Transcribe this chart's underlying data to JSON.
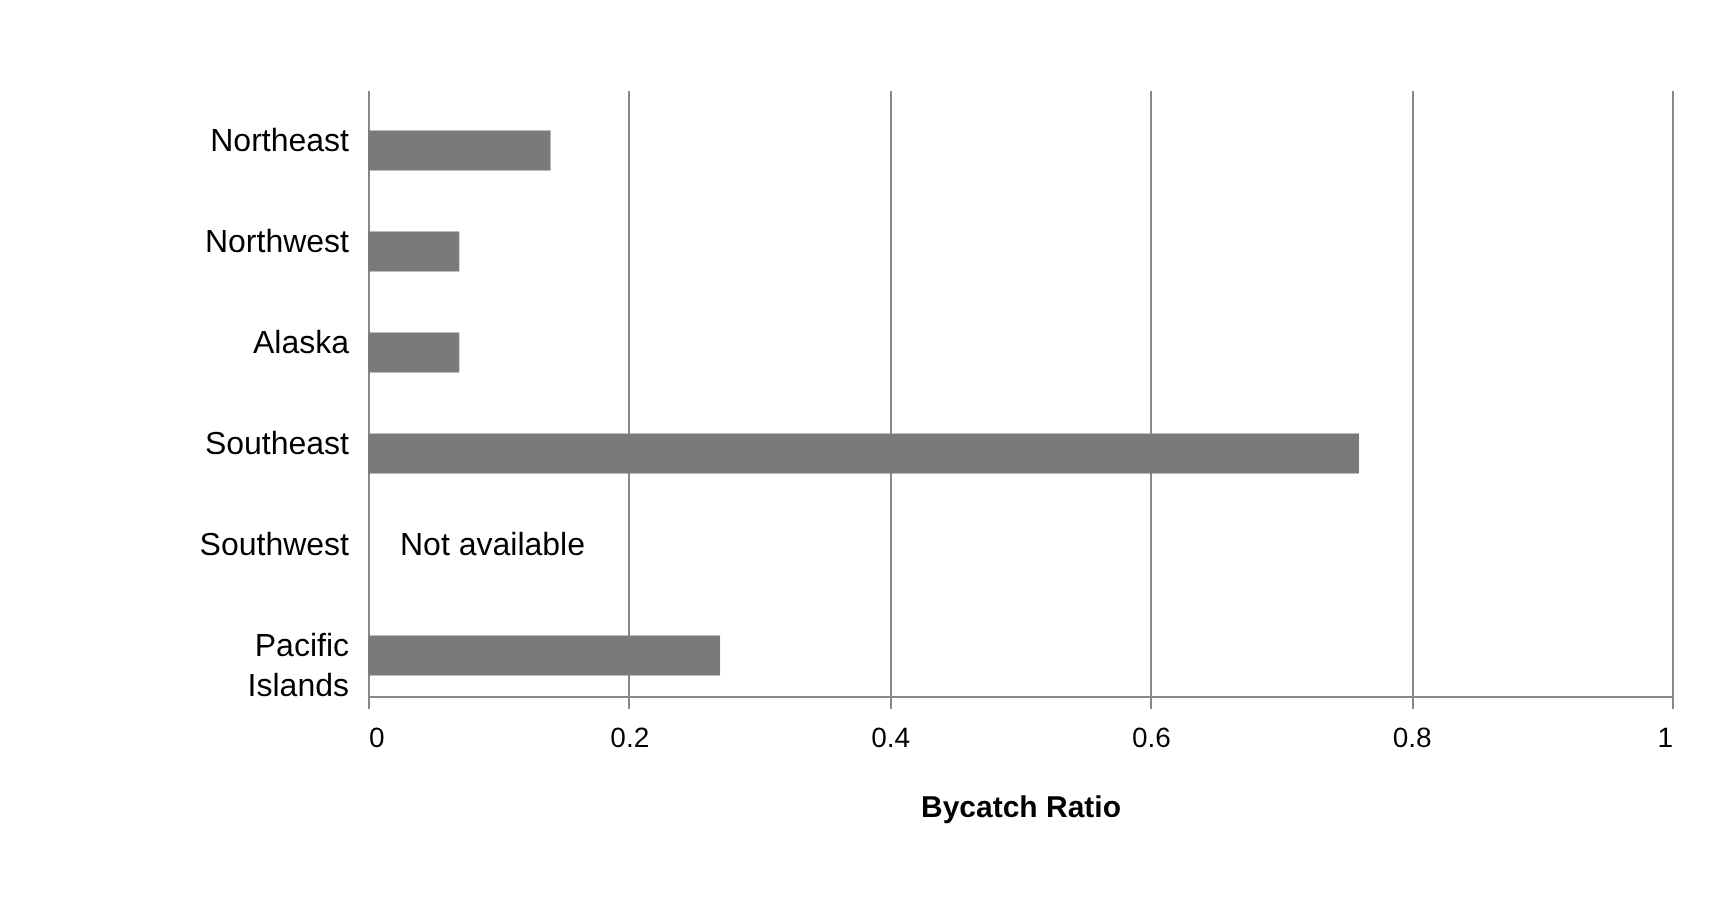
{
  "chart_data": {
    "type": "bar",
    "orientation": "horizontal",
    "xlabel": "Bycatch Ratio",
    "categories": [
      "Northeast",
      "Northwest",
      "Alaska",
      "Southeast",
      "Southwest",
      "Pacific Islands"
    ],
    "values": [
      0.14,
      0.07,
      0.07,
      0.76,
      null,
      0.27
    ],
    "color": "#7a7a7a",
    "xlim": [
      0,
      1
    ],
    "xticks": [
      0,
      0.2,
      0.4,
      0.6,
      0.8,
      1
    ],
    "grid": "x",
    "annotations": [
      "Not available"
    ]
  }
}
